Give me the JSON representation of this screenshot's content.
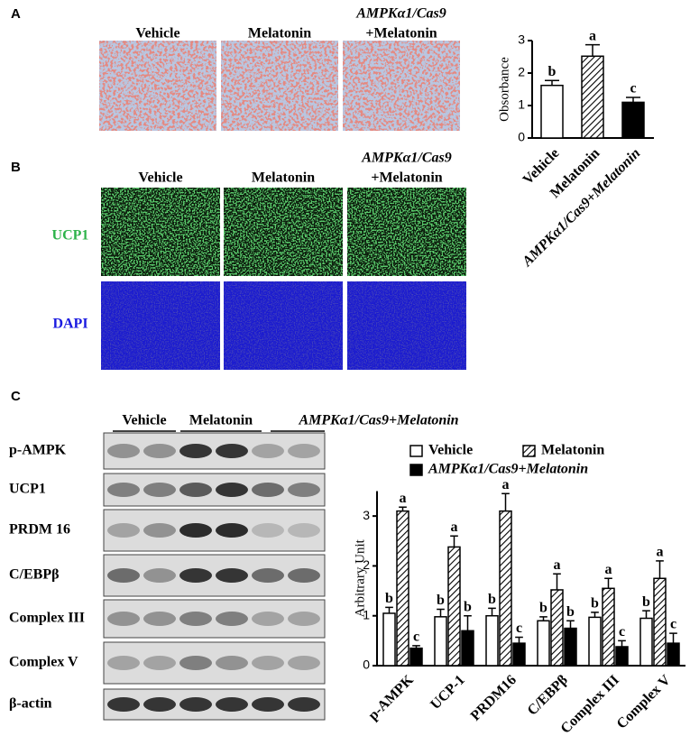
{
  "panel_labels": [
    "A",
    "B",
    "C"
  ],
  "panel_a": {
    "columns": [
      [
        "Vehicle"
      ],
      [
        "Melatonin"
      ],
      [
        "AMPKα1/Cas9",
        "+Melatonin"
      ]
    ]
  },
  "panel_b": {
    "columns": [
      [
        "Vehicle"
      ],
      [
        "Melatonin"
      ],
      [
        "AMPKα1/Cas9",
        "+Melatonin"
      ]
    ],
    "rows": [
      "UCP1",
      "DAPI"
    ]
  },
  "panel_c": {
    "groups": [
      "Vehicle",
      "Melatonin",
      "AMPKα1/Cas9+Melatonin"
    ],
    "blots": [
      "p-AMPK",
      "UCP1",
      "PRDM 16",
      "C/EBPβ",
      "Complex III",
      "Complex V",
      "β-actin"
    ]
  },
  "chart_data": [
    {
      "type": "bar",
      "ylabel": "Obsorbance",
      "categories": [
        "Vehicle",
        "Melatonin",
        "AMPKα1/Cas9+Melatonin"
      ],
      "values": [
        1.62,
        2.52,
        1.1
      ],
      "errors": [
        0.15,
        0.35,
        0.15
      ],
      "letters": [
        "b",
        "a",
        "c"
      ],
      "colors": [
        "#ffffff",
        "#ffffff",
        "#000000"
      ],
      "hatched": [
        false,
        true,
        false
      ],
      "ylim": [
        0,
        3
      ],
      "yticks": [
        0,
        1,
        2,
        3
      ]
    },
    {
      "type": "grouped-bar",
      "ylabel": "Arbitrary Unit",
      "categories": [
        "p-AMPK",
        "UCP-1",
        "PRDM16",
        "C/EBPβ",
        "Complex III",
        "Complex V"
      ],
      "series": [
        {
          "name": "Vehicle",
          "color": "#ffffff",
          "hatched": false,
          "values": [
            1.05,
            0.98,
            1.0,
            0.9,
            0.97,
            0.95
          ],
          "errors": [
            0.12,
            0.15,
            0.15,
            0.08,
            0.1,
            0.15
          ],
          "letters": [
            "b",
            "b",
            "b",
            "b",
            "b",
            "b"
          ]
        },
        {
          "name": "Melatonin",
          "color": "#ffffff",
          "hatched": true,
          "values": [
            3.1,
            2.38,
            3.1,
            1.52,
            1.55,
            1.75
          ],
          "errors": [
            0.08,
            0.22,
            0.35,
            0.32,
            0.2,
            0.35
          ],
          "letters": [
            "a",
            "a",
            "a",
            "a",
            "a",
            "a"
          ]
        },
        {
          "name": "AMPKα1/Cas9+Melatonin",
          "color": "#000000",
          "hatched": false,
          "values": [
            0.35,
            0.7,
            0.45,
            0.75,
            0.38,
            0.45
          ],
          "errors": [
            0.05,
            0.3,
            0.12,
            0.15,
            0.12,
            0.2
          ],
          "letters": [
            "c",
            "b",
            "c",
            "b",
            "c",
            "c"
          ]
        }
      ],
      "ylim": [
        0,
        3.5
      ],
      "yticks": [
        0,
        1,
        2,
        3
      ]
    }
  ]
}
